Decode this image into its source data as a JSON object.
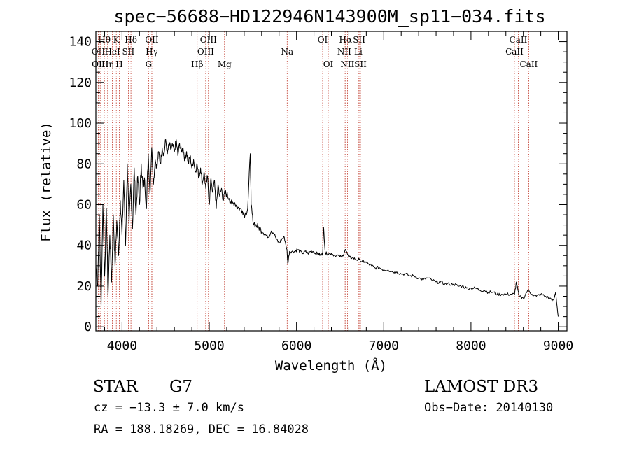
{
  "chart_data": {
    "type": "line",
    "title": "spec−56688−HD122946N143900M_sp11−034.fits",
    "xlabel": "Wavelength (Å)",
    "ylabel": "Flux (relative)",
    "xlim": [
      3700,
      9100
    ],
    "ylim": [
      -2,
      145
    ],
    "xticks": [
      4000,
      5000,
      6000,
      7000,
      8000,
      9000
    ],
    "xtick_labels": [
      "4000",
      "5000",
      "6000",
      "7000",
      "8000",
      "9000"
    ],
    "yticks": [
      0,
      20,
      40,
      60,
      80,
      100,
      120,
      140
    ],
    "ytick_labels": [
      "0",
      "20",
      "40",
      "60",
      "80",
      "100",
      "120",
      "140"
    ],
    "grid": false,
    "series": [
      {
        "name": "flux",
        "x": [
          3700,
          3720,
          3740,
          3760,
          3780,
          3800,
          3820,
          3840,
          3860,
          3880,
          3900,
          3920,
          3940,
          3960,
          3980,
          4000,
          4020,
          4040,
          4060,
          4080,
          4100,
          4120,
          4140,
          4160,
          4180,
          4200,
          4220,
          4240,
          4260,
          4280,
          4300,
          4320,
          4340,
          4360,
          4380,
          4400,
          4420,
          4440,
          4460,
          4480,
          4500,
          4520,
          4540,
          4560,
          4580,
          4600,
          4620,
          4640,
          4660,
          4680,
          4700,
          4720,
          4740,
          4760,
          4780,
          4800,
          4820,
          4840,
          4860,
          4880,
          4900,
          4920,
          4940,
          4960,
          4980,
          5000,
          5020,
          5040,
          5060,
          5080,
          5100,
          5120,
          5140,
          5160,
          5180,
          5200,
          5230,
          5260,
          5290,
          5320,
          5350,
          5380,
          5410,
          5440,
          5470,
          5480,
          5500,
          5530,
          5560,
          5590,
          5620,
          5650,
          5680,
          5710,
          5740,
          5770,
          5800,
          5830,
          5860,
          5890,
          5900,
          5920,
          5950,
          5980,
          6010,
          6040,
          6070,
          6100,
          6130,
          6160,
          6190,
          6220,
          6250,
          6280,
          6300,
          6310,
          6330,
          6360,
          6400,
          6440,
          6480,
          6520,
          6560,
          6600,
          6640,
          6680,
          6720,
          6750,
          6780,
          6820,
          6860,
          6900,
          6950,
          7000,
          7050,
          7100,
          7150,
          7200,
          7250,
          7300,
          7350,
          7400,
          7450,
          7500,
          7550,
          7600,
          7650,
          7700,
          7750,
          7800,
          7850,
          7900,
          7950,
          8000,
          8050,
          8100,
          8150,
          8200,
          8250,
          8300,
          8350,
          8400,
          8450,
          8500,
          8520,
          8550,
          8600,
          8650,
          8700,
          8750,
          8800,
          8850,
          8900,
          8950,
          8970,
          9000
        ],
        "y": [
          30,
          20,
          55,
          10,
          60,
          25,
          58,
          15,
          45,
          22,
          55,
          30,
          52,
          35,
          62,
          45,
          72,
          40,
          80,
          50,
          70,
          48,
          78,
          55,
          74,
          60,
          80,
          68,
          72,
          58,
          85,
          65,
          88,
          70,
          82,
          78,
          86,
          80,
          88,
          84,
          92,
          85,
          90,
          87,
          89,
          86,
          92,
          84,
          90,
          86,
          88,
          82,
          86,
          80,
          84,
          78,
          82,
          76,
          80,
          73,
          78,
          70,
          76,
          68,
          74,
          60,
          73,
          66,
          72,
          58,
          70,
          64,
          68,
          62,
          66,
          65,
          63,
          60,
          61,
          59,
          58,
          57,
          55,
          58,
          85,
          60,
          52,
          50,
          49,
          48,
          46,
          45,
          44,
          47,
          46,
          43,
          41,
          43,
          44,
          38,
          31,
          37,
          37,
          37,
          38,
          37,
          36,
          37,
          36,
          37,
          37,
          36,
          36,
          35,
          36,
          49,
          36,
          36,
          36,
          35,
          35,
          34,
          38,
          34,
          34,
          33,
          33,
          32,
          32,
          31,
          30,
          29,
          29,
          28,
          28,
          27,
          27,
          26,
          26,
          25,
          25,
          24,
          23,
          24,
          23,
          22,
          22,
          21,
          21,
          21,
          20,
          20,
          19,
          19,
          19,
          18,
          18,
          17,
          17,
          16,
          16,
          16,
          16,
          16,
          22,
          15,
          14,
          18,
          16,
          15,
          16,
          15,
          14,
          13,
          17,
          5
        ]
      }
    ],
    "lines": [
      {
        "label": "Hθ",
        "x": 3798,
        "row": 1
      },
      {
        "label": "OII",
        "x": 3727,
        "row": 2
      },
      {
        "label": "OIII",
        "x": 3750,
        "row": 3
      },
      {
        "label": "Hη",
        "x": 3835,
        "row": 3
      },
      {
        "label": "K",
        "x": 3934,
        "row": 1
      },
      {
        "label": "HeI",
        "x": 3889,
        "row": 2
      },
      {
        "label": "H",
        "x": 3969,
        "row": 3
      },
      {
        "label": "Hδ",
        "x": 4102,
        "row": 1
      },
      {
        "label": "SII",
        "x": 4072,
        "row": 2
      },
      {
        "label": "G",
        "x": 4305,
        "row": 3
      },
      {
        "label": "OII",
        "x": 4342,
        "row": 1
      },
      {
        "label": "Hγ",
        "x": 4341,
        "row": 2
      },
      {
        "label": "Hβ",
        "x": 4861,
        "row": 3
      },
      {
        "label": "OIII",
        "x": 4990,
        "row": 1
      },
      {
        "label": "OIII",
        "x": 4959,
        "row": 2
      },
      {
        "label": "Mg",
        "x": 5175,
        "row": 3
      },
      {
        "label": "Na",
        "x": 5893,
        "row": 2
      },
      {
        "label": "OI",
        "x": 6300,
        "row": 1
      },
      {
        "label": "OI",
        "x": 6364,
        "row": 3
      },
      {
        "label": "Hα",
        "x": 6563,
        "row": 1
      },
      {
        "label": "NII",
        "x": 6548,
        "row": 2
      },
      {
        "label": "NII",
        "x": 6584,
        "row": 3
      },
      {
        "label": "SII",
        "x": 6718,
        "row": 1
      },
      {
        "label": "Li",
        "x": 6708,
        "row": 2
      },
      {
        "label": "SII",
        "x": 6733,
        "row": 3
      },
      {
        "label": "CaII",
        "x": 8542,
        "row": 1
      },
      {
        "label": "CaII",
        "x": 8498,
        "row": 2
      },
      {
        "label": "CaII",
        "x": 8662,
        "row": 3
      }
    ]
  },
  "info": {
    "object_class": "STAR",
    "subclass": "G7",
    "survey": "LAMOST DR3",
    "velocity": "cz = −13.3 ± 7.0 km/s",
    "obs_date": "Obs−Date: 20140130",
    "coords": "RA = 188.18269, DEC =  16.84028"
  },
  "colors": {
    "spectrum": "#000000",
    "line_markers": "#c0392b"
  }
}
